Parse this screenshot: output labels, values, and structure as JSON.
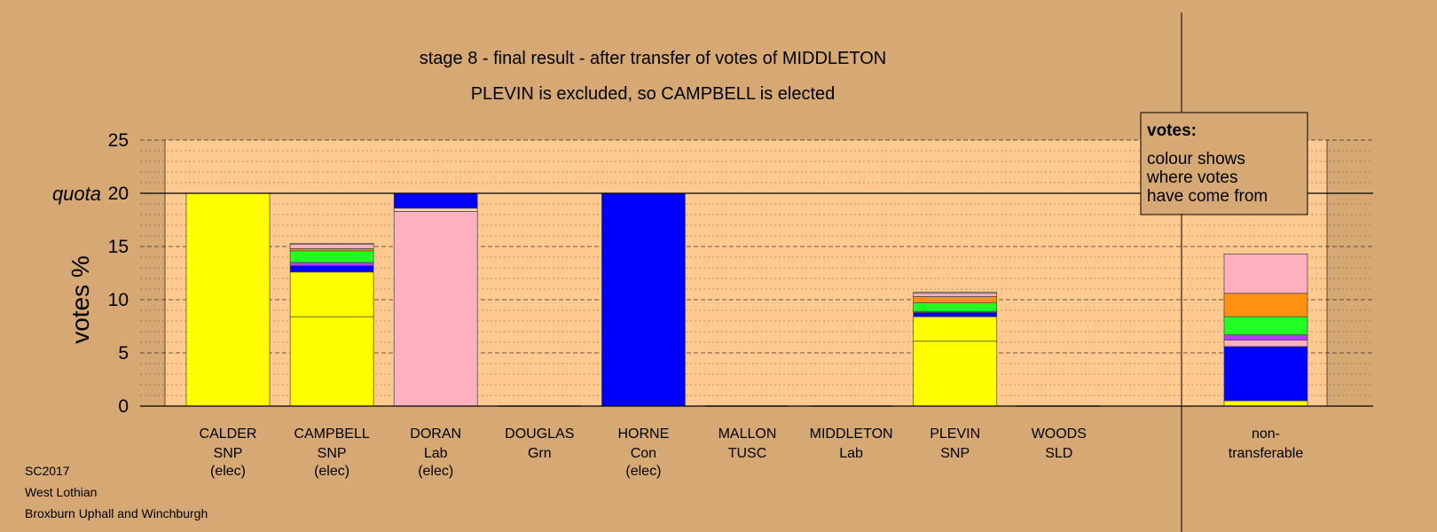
{
  "chart_data": {
    "type": "bar",
    "stacked": true,
    "title": "stage 8 - final result - after transfer of votes of MIDDLETON",
    "subtitle": "PLEVIN is excluded, so CAMPBELL is elected",
    "ylabel": "votes %",
    "ylim": [
      0,
      25
    ],
    "yticks": [
      0,
      5,
      10,
      15,
      20,
      25
    ],
    "quota": {
      "label": "quota",
      "value": 20
    },
    "colors": {
      "plot_bg": "#ffc98f",
      "page_bg": "#d5a874",
      "SNP": "#ffff00",
      "Lab": "#ffb0c0",
      "Con": "#0000ff",
      "Grn": "#22ff22",
      "TUSC": "#b83cff",
      "SLD": "#ff9010",
      "Lab_elected": "#f6d9b4"
    },
    "candidates": [
      {
        "name": "CALDER",
        "party": "SNP",
        "status": "(elec)",
        "segments": [
          {
            "from": "SNP",
            "value": 20.0
          }
        ]
      },
      {
        "name": "CAMPBELL",
        "party": "SNP",
        "status": "(elec)",
        "segments": [
          {
            "from": "SNP",
            "value": 8.4
          },
          {
            "from": "SNP",
            "value": 4.2
          },
          {
            "from": "Con",
            "value": 0.6
          },
          {
            "from": "TUSC",
            "value": 0.3
          },
          {
            "from": "Grn",
            "value": 1.1
          },
          {
            "from": "SLD",
            "value": 0.2
          },
          {
            "from": "Lab",
            "value": 0.4
          },
          {
            "from": "Lab_elected",
            "value": 0.1
          }
        ]
      },
      {
        "name": "DORAN",
        "party": "Lab",
        "status": "(elec)",
        "segments": [
          {
            "from": "Lab",
            "value": 18.3
          },
          {
            "from": "Lab_elected",
            "value": 0.3
          },
          {
            "from": "Con",
            "value": 1.4
          }
        ]
      },
      {
        "name": "DOUGLAS",
        "party": "Grn",
        "status": "",
        "segments": []
      },
      {
        "name": "HORNE",
        "party": "Con",
        "status": "(elec)",
        "segments": [
          {
            "from": "Con",
            "value": 20.0
          }
        ]
      },
      {
        "name": "MALLON",
        "party": "TUSC",
        "status": "",
        "segments": []
      },
      {
        "name": "MIDDLETON",
        "party": "Lab",
        "status": "",
        "segments": []
      },
      {
        "name": "PLEVIN",
        "party": "SNP",
        "status": "",
        "segments": [
          {
            "from": "SNP",
            "value": 6.1
          },
          {
            "from": "SNP",
            "value": 2.3
          },
          {
            "from": "Con",
            "value": 0.4
          },
          {
            "from": "TUSC",
            "value": 0.1
          },
          {
            "from": "Grn",
            "value": 0.8
          },
          {
            "from": "SLD",
            "value": 0.6
          },
          {
            "from": "Lab",
            "value": 0.3
          },
          {
            "from": "Lab_elected",
            "value": 0.1
          }
        ]
      },
      {
        "name": "WOODS",
        "party": "SLD",
        "status": "",
        "segments": []
      }
    ],
    "nontransferable": {
      "label_line1": "non-",
      "label_line2": "transferable",
      "segments": [
        {
          "from": "SNP",
          "value": 0.5
        },
        {
          "from": "Con",
          "value": 5.1
        },
        {
          "from": "Lab",
          "value": 0.6
        },
        {
          "from": "TUSC",
          "value": 0.5
        },
        {
          "from": "Grn",
          "value": 1.7
        },
        {
          "from": "SLD",
          "value": 2.2
        },
        {
          "from": "Lab",
          "value": 3.7
        }
      ]
    },
    "legend": {
      "title": "votes:",
      "lines": [
        "colour shows",
        "where votes",
        "have come from"
      ],
      "placement": "top-right"
    }
  },
  "footer": {
    "line1": "SC2017",
    "line2": "West Lothian",
    "line3": "Broxburn Uphall and Winchburgh"
  }
}
